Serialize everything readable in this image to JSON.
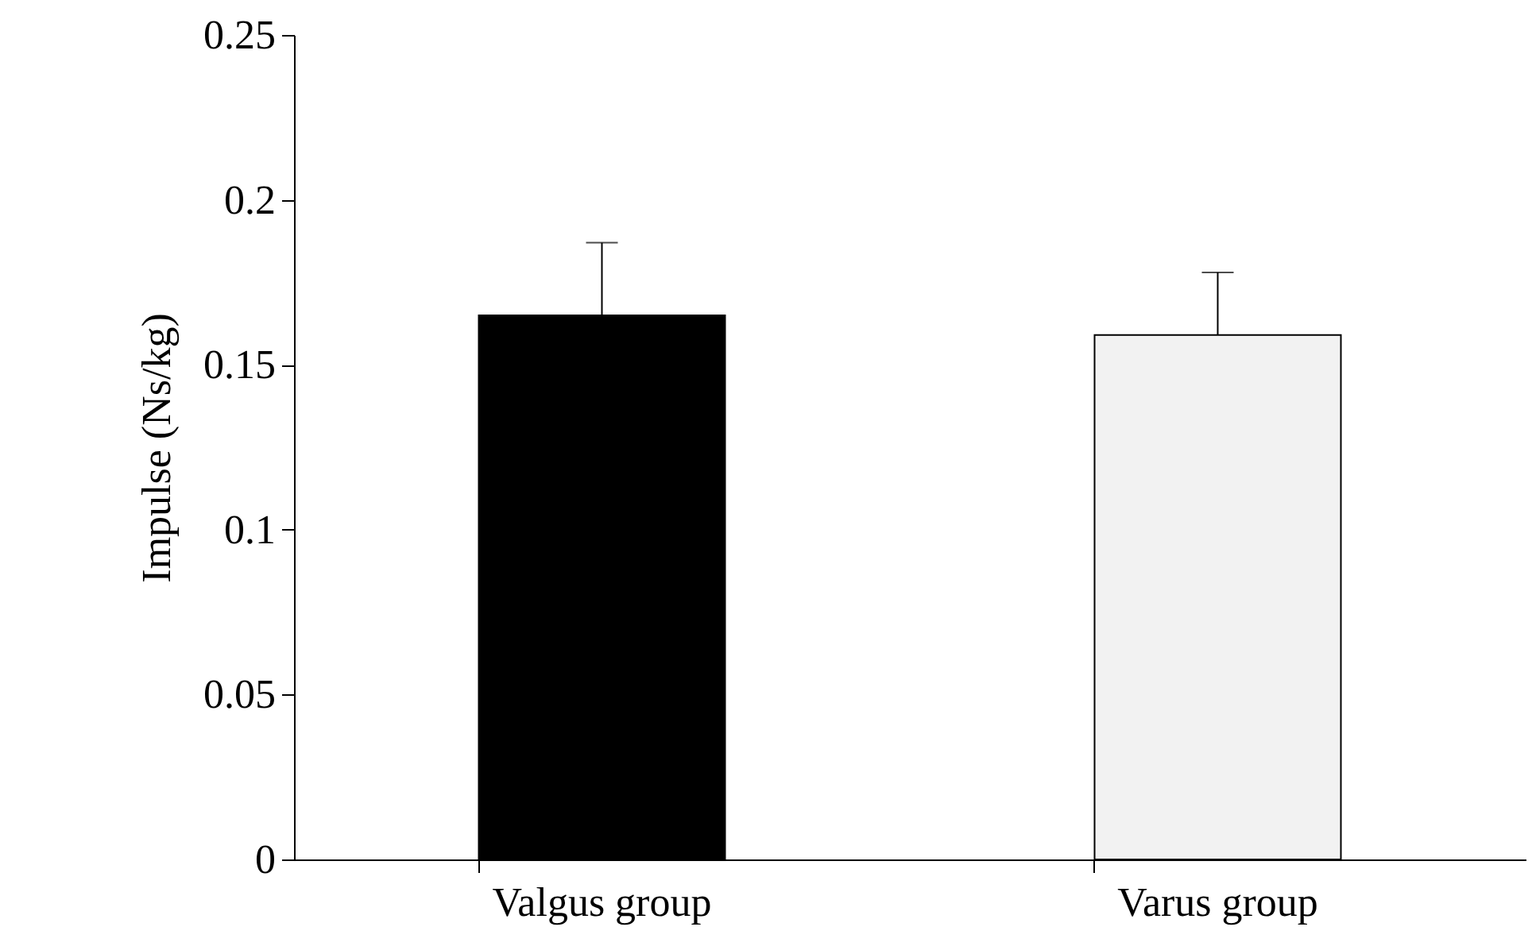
{
  "chart_data": {
    "type": "bar",
    "ylabel": "Impulse (Ns/kg)",
    "categories": [
      "Valgus group",
      "Varus group"
    ],
    "values": [
      0.165,
      0.159
    ],
    "colors": [
      "#000000",
      "#f2f2f2"
    ],
    "errors": [
      [
        0.165,
        0.187
      ],
      [
        0.159,
        0.178
      ]
    ],
    "ylim": [
      0,
      0.25
    ],
    "yticks": [
      0,
      0.05,
      0.1,
      0.15,
      0.2,
      0.25
    ],
    "grid": false
  }
}
